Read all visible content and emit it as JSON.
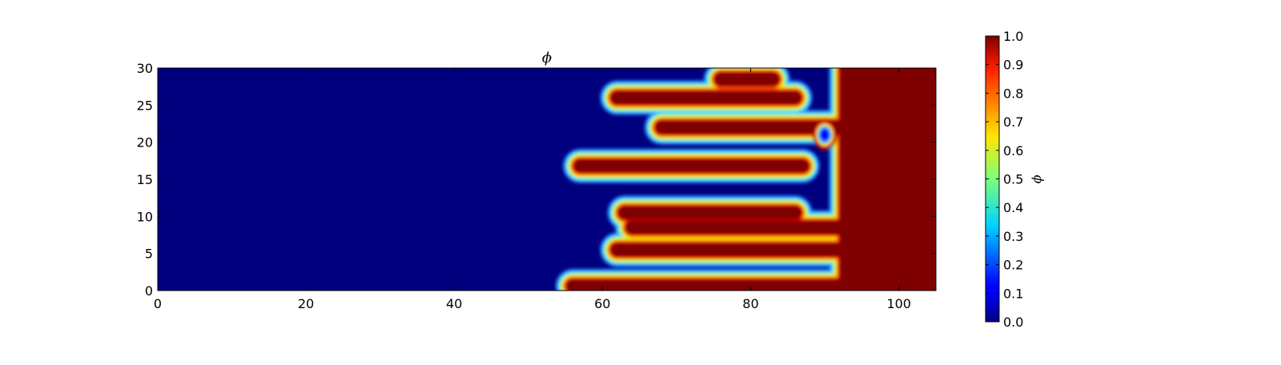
{
  "chart_data": {
    "type": "heatmap",
    "title": "ϕ",
    "xlabel": "",
    "ylabel": "",
    "xlim": [
      0,
      105
    ],
    "ylim": [
      0,
      30
    ],
    "xticks": [
      0,
      20,
      40,
      60,
      80,
      100
    ],
    "xtick_labels": [
      "0",
      "20",
      "40",
      "60",
      "80",
      "100"
    ],
    "yticks": [
      0,
      5,
      10,
      15,
      20,
      25,
      30
    ],
    "ytick_labels": [
      "0",
      "5",
      "10",
      "15",
      "20",
      "25",
      "30"
    ],
    "colormap": "jet",
    "grid": false,
    "colorbar": {
      "label": "ϕ",
      "range": [
        0.0,
        1.0
      ],
      "ticks": [
        0.0,
        0.1,
        0.2,
        0.3,
        0.4,
        0.5,
        0.6,
        0.7,
        0.8,
        0.9,
        1.0
      ],
      "tick_labels": [
        "0.0",
        "0.1",
        "0.2",
        "0.3",
        "0.4",
        "0.5",
        "0.6",
        "0.7",
        "0.8",
        "0.9",
        "1.0"
      ]
    },
    "low_value": 0.0,
    "high_value": 1.0,
    "high_region_start_x": 92,
    "fingers": [
      {
        "y": 0.6,
        "tip_x": 56,
        "base_x": 90
      },
      {
        "y": 5.5,
        "tip_x": 62,
        "base_x": 91
      },
      {
        "y": 8.5,
        "tip_x": 64,
        "base_x": 91
      },
      {
        "y": 10.5,
        "tip_x": 63,
        "base_x": 82
      },
      {
        "y": 16.8,
        "tip_x": 57,
        "base_x": 83
      },
      {
        "y": 22,
        "tip_x": 68,
        "base_x": 92
      },
      {
        "y": 26,
        "tip_x": 62,
        "base_x": 82
      },
      {
        "y": 28.5,
        "tip_x": 76,
        "base_x": 79
      }
    ],
    "blobs": [
      {
        "x": 90,
        "y": 21,
        "value": 0.0
      }
    ]
  }
}
